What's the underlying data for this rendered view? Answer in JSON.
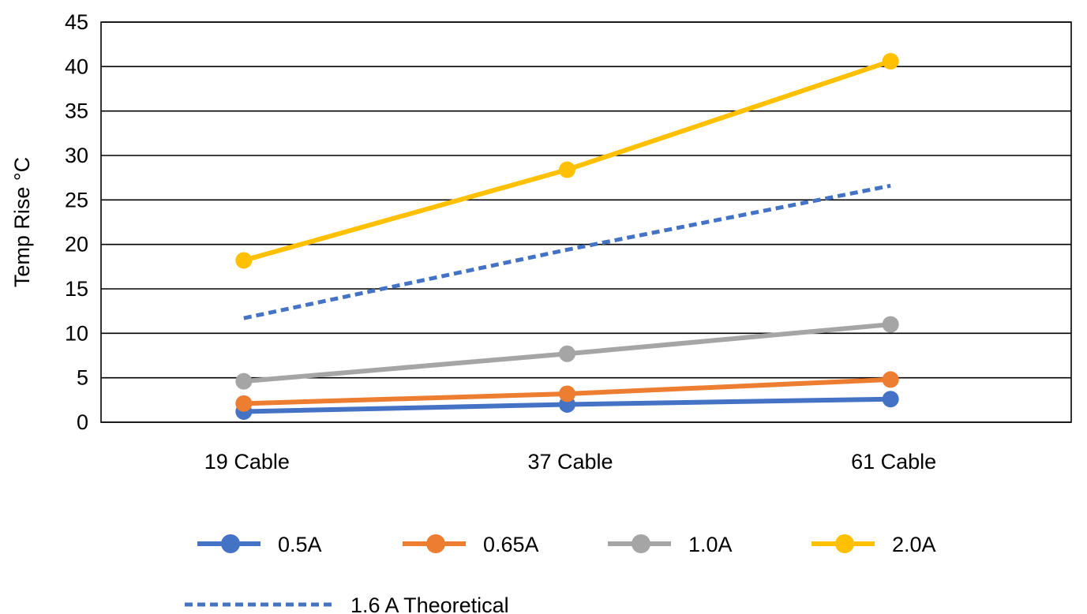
{
  "chart_data": {
    "type": "line",
    "title": "",
    "xlabel": "",
    "ylabel": "Temp Rise °C",
    "ylim": [
      0,
      45
    ],
    "yticks": [
      0,
      5,
      10,
      15,
      20,
      25,
      30,
      35,
      40,
      45
    ],
    "categories": [
      "19 Cable",
      "37 Cable",
      "61 Cable"
    ],
    "grid": true,
    "legend_position": "bottom",
    "series": [
      {
        "name": "0.5A",
        "values": [
          1.2,
          2.0,
          2.6
        ],
        "color": "#4472C4",
        "style": "solid",
        "markers": true
      },
      {
        "name": "0.65A",
        "values": [
          2.1,
          3.2,
          4.8
        ],
        "color": "#ED7D31",
        "style": "solid",
        "markers": true
      },
      {
        "name": "1.0A",
        "values": [
          4.6,
          7.7,
          11.0
        ],
        "color": "#A5A5A5",
        "style": "solid",
        "markers": true
      },
      {
        "name": "2.0A",
        "values": [
          18.2,
          28.4,
          40.6
        ],
        "color": "#FFC000",
        "style": "solid",
        "markers": true
      },
      {
        "name": "1.6 A Theoretical",
        "values": [
          11.7,
          19.4,
          26.6
        ],
        "color": "#4472C4",
        "style": "dashed",
        "markers": false
      }
    ]
  }
}
